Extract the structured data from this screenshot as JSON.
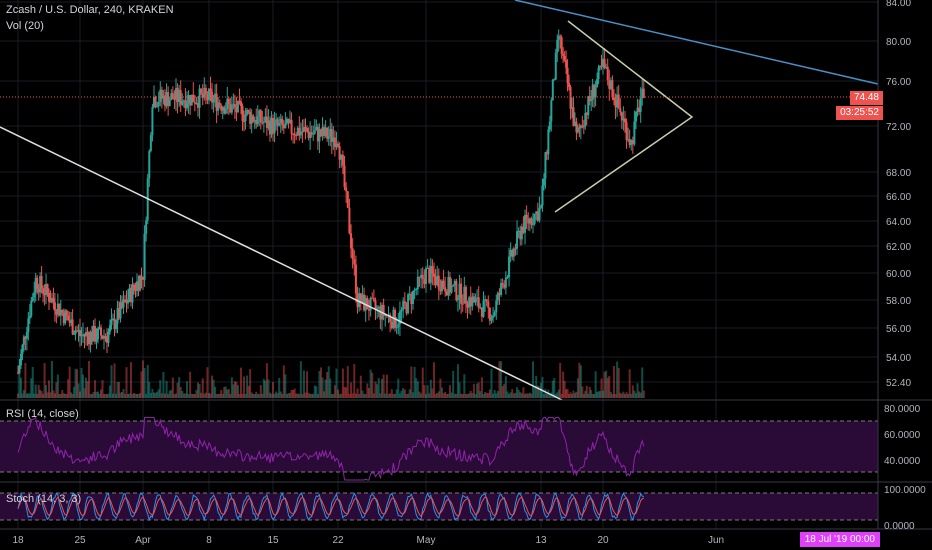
{
  "header": {
    "symbol_line": "Zcash / U.S. Dollar, 240, KRAKEN",
    "volume_label": "Vol (20)"
  },
  "price_badges": {
    "last_price": "74.48",
    "countdown": "03:25:52"
  },
  "rsi_pane": {
    "label": "RSI (14, close)",
    "ticks": [
      "80.0000",
      "60.0000",
      "40.0000"
    ]
  },
  "stoch_pane": {
    "label": "Stoch (14, 3, 3)",
    "ticks": [
      "100.0000",
      "0.0000"
    ]
  },
  "date_badge": "18 Jul '19  00:00",
  "colors": {
    "up": "#26a69a",
    "down": "#ef5350",
    "rsi_line": "#8e24aa",
    "rsi_band": "#2a0a36",
    "stoch_band": "#2a0a36",
    "stoch_k": "#2196f3",
    "stoch_d": "#ef5350",
    "trendline_blue": "#4a90c8",
    "trendline_white": "#e0e0e0",
    "triangle": "#c5cfa8",
    "grid": "#1a1d24"
  },
  "chart_data": {
    "type": "candlestick",
    "title": "Zcash / U.S. Dollar, 240, KRAKEN",
    "y_ticks": [
      "84.00",
      "80.00",
      "76.00",
      "72.00",
      "68.00",
      "66.00",
      "64.00",
      "62.00",
      "60.00",
      "58.00",
      "56.00",
      "54.00",
      "52.40"
    ],
    "x_ticks": [
      "18",
      "25",
      "Apr",
      "8",
      "15",
      "22",
      "May",
      "13",
      "20",
      "Jun"
    ],
    "last_price": 74.48,
    "approx_close_path": [
      {
        "date": "Mar 18",
        "close": 53.0
      },
      {
        "date": "Mar 20",
        "close": 59.5
      },
      {
        "date": "Mar 25",
        "close": 55.5
      },
      {
        "date": "Mar 28",
        "close": 55.5
      },
      {
        "date": "Apr 1",
        "close": 60.0
      },
      {
        "date": "Apr 2",
        "close": 74.5
      },
      {
        "date": "Apr 8",
        "close": 74.5
      },
      {
        "date": "Apr 15",
        "close": 72.0
      },
      {
        "date": "Apr 22",
        "close": 71.0
      },
      {
        "date": "Apr 24",
        "close": 58.0
      },
      {
        "date": "Apr 28",
        "close": 56.5
      },
      {
        "date": "May 1",
        "close": 60.0
      },
      {
        "date": "May 8",
        "close": 57.0
      },
      {
        "date": "May 11",
        "close": 63.5
      },
      {
        "date": "May 13",
        "close": 65.0
      },
      {
        "date": "May 15",
        "close": 80.5
      },
      {
        "date": "May 17",
        "close": 71.0
      },
      {
        "date": "May 20",
        "close": 77.5
      },
      {
        "date": "May 23",
        "close": 70.5
      },
      {
        "date": "May 24",
        "close": 74.48
      }
    ],
    "rsi_ticks": [
      "80.0000",
      "60.0000",
      "40.0000"
    ],
    "stoch_ticks": [
      "100.0000",
      "0.0000"
    ]
  }
}
